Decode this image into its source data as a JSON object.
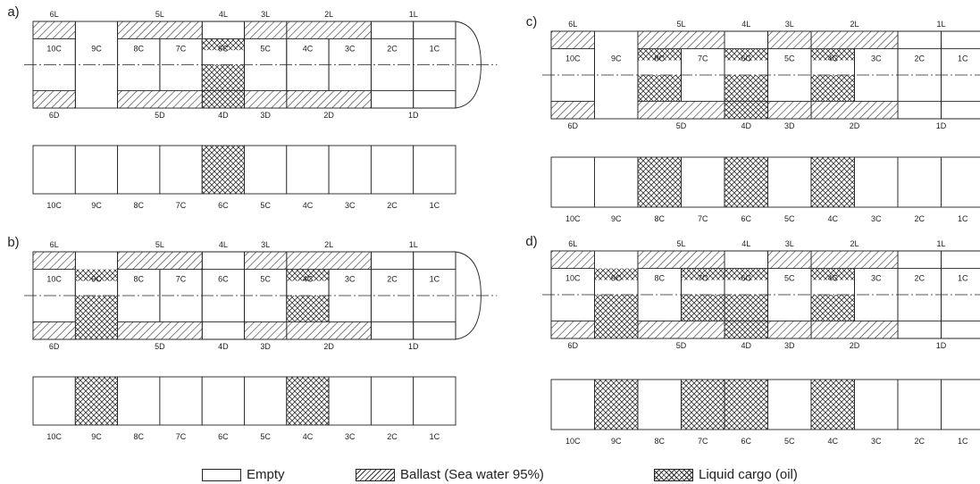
{
  "colors": {
    "ink": "#222222",
    "hatch": "#333333",
    "fill": "#ffffff"
  },
  "panels": [
    {
      "label": "a)",
      "ballast": [
        "6L",
        "5L",
        "3L",
        "2L",
        "6D",
        "5D",
        "3D",
        "2D"
      ],
      "cargo": [
        "6C"
      ]
    },
    {
      "label": "b)",
      "ballast": [
        "6L",
        "5L",
        "3L",
        "2L",
        "6D",
        "5D",
        "3D",
        "2D"
      ],
      "cargo": [
        "9C",
        "4C"
      ]
    },
    {
      "label": "c)",
      "ballast": [
        "6L",
        "5L",
        "3L",
        "2L",
        "6D",
        "5D",
        "3D",
        "2D"
      ],
      "cargo": [
        "8C",
        "6C",
        "4C"
      ]
    },
    {
      "label": "d)",
      "ballast": [
        "6L",
        "5L",
        "3L",
        "2L",
        "6D",
        "5D",
        "3D",
        "2D"
      ],
      "cargo": [
        "9C",
        "7C",
        "6C",
        "4C"
      ]
    }
  ],
  "tanks": {
    "centre": [
      "10C",
      "9C",
      "8C",
      "7C",
      "6C",
      "5C",
      "4C",
      "3C",
      "2C",
      "1C"
    ],
    "port": [
      "6L",
      "5L",
      "4L",
      "3L",
      "2L",
      "1L"
    ],
    "starboard": [
      "6D",
      "5D",
      "4D",
      "3D",
      "2D",
      "1D"
    ]
  },
  "legend": [
    {
      "label": "Empty",
      "pattern": "empty"
    },
    {
      "label": "Ballast (Sea water 95%)",
      "pattern": "ballast"
    },
    {
      "label": "Liquid cargo (oil)",
      "pattern": "cargo"
    }
  ]
}
